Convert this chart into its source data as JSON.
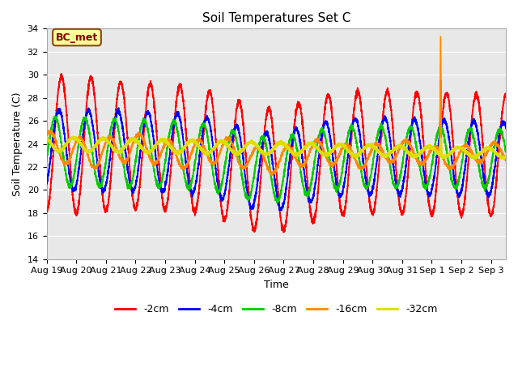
{
  "title": "Soil Temperatures Set C",
  "xlabel": "Time",
  "ylabel": "Soil Temperature (C)",
  "ylim": [
    14,
    34
  ],
  "background_color": "#e8e8e8",
  "figure_color": "#ffffff",
  "annotation_label": "BC_met",
  "annotation_bg": "#ffff99",
  "annotation_border": "#8B4513",
  "legend_entries": [
    "-2cm",
    "-4cm",
    "-8cm",
    "-16cm",
    "-32cm"
  ],
  "line_colors": [
    "#ff0000",
    "#0000ff",
    "#00cc00",
    "#ff8800",
    "#dddd00"
  ],
  "xtick_labels": [
    "Aug 19",
    "Aug 20",
    "Aug 21",
    "Aug 22",
    "Aug 23",
    "Aug 24",
    "Aug 25",
    "Aug 26",
    "Aug 27",
    "Aug 28",
    "Aug 29",
    "Aug 30",
    "Aug 31",
    "Sep 1",
    "Sep 2",
    "Sep 3"
  ]
}
